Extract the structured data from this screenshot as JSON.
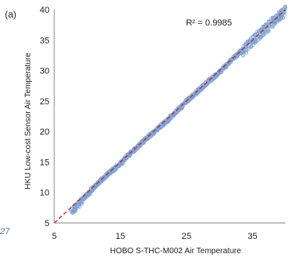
{
  "chart_data": {
    "type": "scatter",
    "panel_label": "(a)",
    "xlabel": "HOBO S-THC-M002 Air Temperature",
    "ylabel": "HKU Low-cost Sensor Air Temperature",
    "xlim": [
      5,
      40
    ],
    "ylim": [
      5,
      40
    ],
    "x_ticks": [
      5,
      15,
      25,
      35
    ],
    "y_ticks": [
      5,
      10,
      15,
      20,
      25,
      30,
      35,
      40
    ],
    "annotation": "R² = 0.9985",
    "grid": false,
    "point_color": "#7aa3d6",
    "fit_line_color": "#d62728",
    "fit_line": {
      "slope": 1.0,
      "intercept": 0.0,
      "style": "dashed"
    },
    "series": [
      {
        "marker": "open-circle",
        "x_range": [
          8,
          40
        ],
        "points": [
          [
            8.0,
            7.3
          ],
          [
            9.0,
            8.4
          ],
          [
            10.0,
            9.6
          ],
          [
            11.0,
            10.8
          ],
          [
            12.0,
            11.9
          ],
          [
            13.0,
            12.9
          ],
          [
            14.0,
            13.8
          ],
          [
            15.0,
            14.7
          ],
          [
            16.0,
            15.9
          ],
          [
            17.0,
            16.9
          ],
          [
            18.0,
            17.9
          ],
          [
            19.0,
            18.9
          ],
          [
            20.0,
            19.8
          ],
          [
            21.0,
            20.8
          ],
          [
            22.0,
            21.7
          ],
          [
            23.0,
            22.8
          ],
          [
            24.0,
            23.8
          ],
          [
            25.0,
            25.0
          ],
          [
            26.0,
            25.9
          ],
          [
            27.0,
            26.9
          ],
          [
            28.0,
            27.9
          ],
          [
            29.0,
            28.8
          ],
          [
            30.0,
            29.7
          ],
          [
            31.0,
            30.8
          ],
          [
            32.0,
            31.9
          ],
          [
            33.0,
            32.9
          ],
          [
            34.0,
            33.7
          ],
          [
            35.0,
            34.8
          ],
          [
            36.0,
            35.9
          ],
          [
            37.0,
            36.8
          ],
          [
            38.0,
            37.9
          ],
          [
            39.0,
            38.9
          ],
          [
            39.5,
            39.3
          ]
        ]
      }
    ]
  },
  "edge_text": "27"
}
